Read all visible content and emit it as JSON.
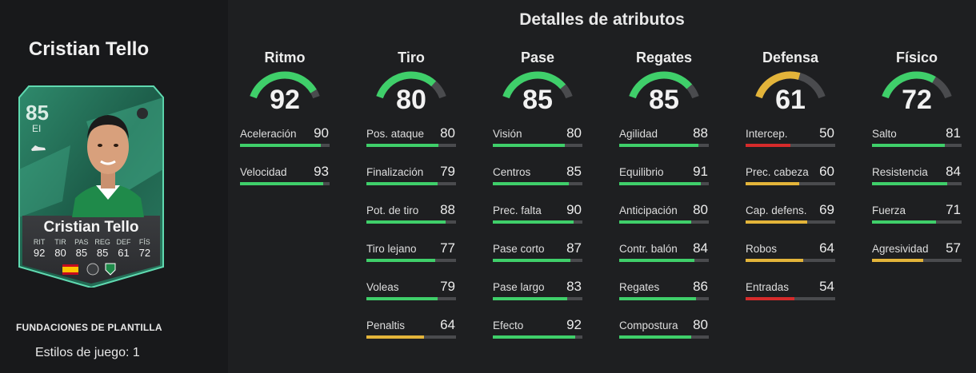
{
  "player": {
    "name": "Cristian Tello",
    "rating": "85",
    "position": "EI",
    "card_name": "Cristian Tello",
    "stats": [
      {
        "label": "RIT",
        "value": "92"
      },
      {
        "label": "TIR",
        "value": "80"
      },
      {
        "label": "PAS",
        "value": "85"
      },
      {
        "label": "REG",
        "value": "85"
      },
      {
        "label": "DEF",
        "value": "61"
      },
      {
        "label": "FÍS",
        "value": "72"
      }
    ]
  },
  "squad_title": "FUNDACIONES DE PLANTILLA",
  "playstyles": "Estilos de juego: 1",
  "section_title": "Detalles de atributos",
  "colors": {
    "green": "#3fcf6a",
    "yellow": "#e3b43a",
    "red": "#d62b2b",
    "track": "#4a4b4e"
  },
  "categories": [
    {
      "name": "Ritmo",
      "value": "92",
      "attributes": [
        {
          "name": "Aceleración",
          "value": "90"
        },
        {
          "name": "Velocidad",
          "value": "93"
        }
      ]
    },
    {
      "name": "Tiro",
      "value": "80",
      "attributes": [
        {
          "name": "Pos. ataque",
          "value": "80"
        },
        {
          "name": "Finalización",
          "value": "79"
        },
        {
          "name": "Pot. de tiro",
          "value": "88"
        },
        {
          "name": "Tiro lejano",
          "value": "77"
        },
        {
          "name": "Voleas",
          "value": "79"
        },
        {
          "name": "Penaltis",
          "value": "64"
        }
      ]
    },
    {
      "name": "Pase",
      "value": "85",
      "attributes": [
        {
          "name": "Visión",
          "value": "80"
        },
        {
          "name": "Centros",
          "value": "85"
        },
        {
          "name": "Prec. falta",
          "value": "90"
        },
        {
          "name": "Pase corto",
          "value": "87"
        },
        {
          "name": "Pase largo",
          "value": "83"
        },
        {
          "name": "Efecto",
          "value": "92"
        }
      ]
    },
    {
      "name": "Regates",
      "value": "85",
      "attributes": [
        {
          "name": "Agilidad",
          "value": "88"
        },
        {
          "name": "Equilibrio",
          "value": "91"
        },
        {
          "name": "Anticipación",
          "value": "80"
        },
        {
          "name": "Contr. balón",
          "value": "84"
        },
        {
          "name": "Regates",
          "value": "86"
        },
        {
          "name": "Compostura",
          "value": "80"
        }
      ]
    },
    {
      "name": "Defensa",
      "value": "61",
      "attributes": [
        {
          "name": "Intercep.",
          "value": "50"
        },
        {
          "name": "Prec. cabeza",
          "value": "60"
        },
        {
          "name": "Cap. defens.",
          "value": "69"
        },
        {
          "name": "Robos",
          "value": "64"
        },
        {
          "name": "Entradas",
          "value": "54"
        }
      ]
    },
    {
      "name": "Físico",
      "value": "72",
      "attributes": [
        {
          "name": "Salto",
          "value": "81"
        },
        {
          "name": "Resistencia",
          "value": "84"
        },
        {
          "name": "Fuerza",
          "value": "71"
        },
        {
          "name": "Agresividad",
          "value": "57"
        }
      ]
    }
  ]
}
